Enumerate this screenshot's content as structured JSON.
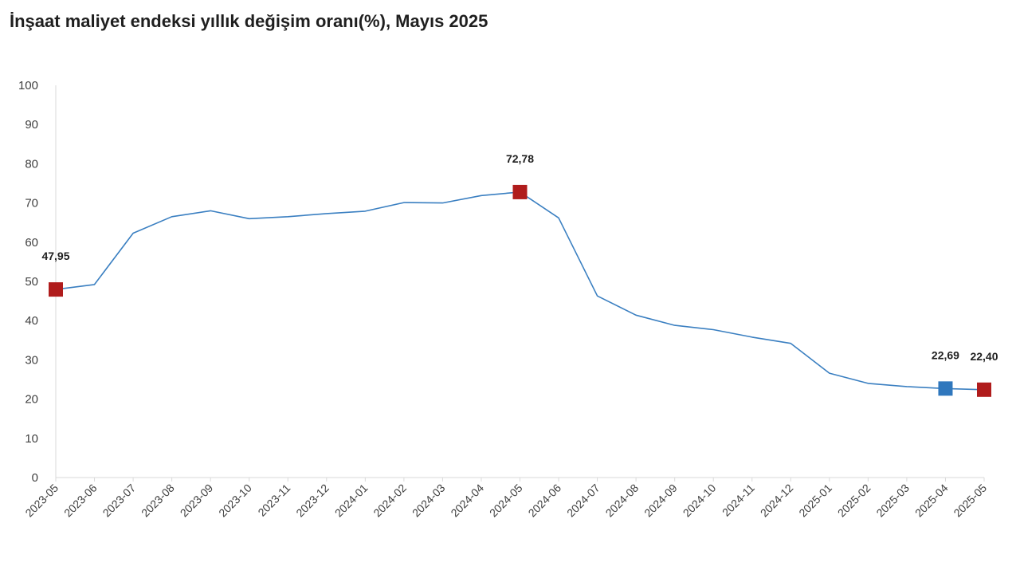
{
  "colors": {
    "line": "#3a7fc1",
    "marker_red": "#b01c1c",
    "marker_blue": "#2f77bd",
    "axis": "#d9d9d9"
  },
  "chart_data": {
    "type": "line",
    "title": "İnşaat maliyet endeksi yıllık değişim oranı(%), Mayıs 2025",
    "xlabel": "",
    "ylabel": "",
    "ylim": [
      0,
      100
    ],
    "yticks": [
      0,
      10,
      20,
      30,
      40,
      50,
      60,
      70,
      80,
      90,
      100
    ],
    "grid": false,
    "categories": [
      "2023-05",
      "2023-06",
      "2023-07",
      "2023-08",
      "2023-09",
      "2023-10",
      "2023-11",
      "2023-12",
      "2024-01",
      "2024-02",
      "2024-03",
      "2024-04",
      "2024-05",
      "2024-06",
      "2024-07",
      "2024-08",
      "2024-09",
      "2024-10",
      "2024-11",
      "2024-12",
      "2025-01",
      "2025-02",
      "2025-03",
      "2025-04",
      "2025-05"
    ],
    "series": [
      {
        "values": [
          47.95,
          49.2,
          62.3,
          66.5,
          68.0,
          66.0,
          66.5,
          67.3,
          67.9,
          70.1,
          70.0,
          71.9,
          72.78,
          66.2,
          46.3,
          41.4,
          38.8,
          37.7,
          35.8,
          34.2,
          26.6,
          24.0,
          23.2,
          22.69,
          22.4
        ]
      }
    ],
    "highlighted_points": [
      {
        "index": 0,
        "label": "47,95",
        "color": "red"
      },
      {
        "index": 12,
        "label": "72,78",
        "color": "red"
      },
      {
        "index": 23,
        "label": "22,69",
        "color": "blue"
      },
      {
        "index": 24,
        "label": "22,40",
        "color": "red"
      }
    ]
  }
}
